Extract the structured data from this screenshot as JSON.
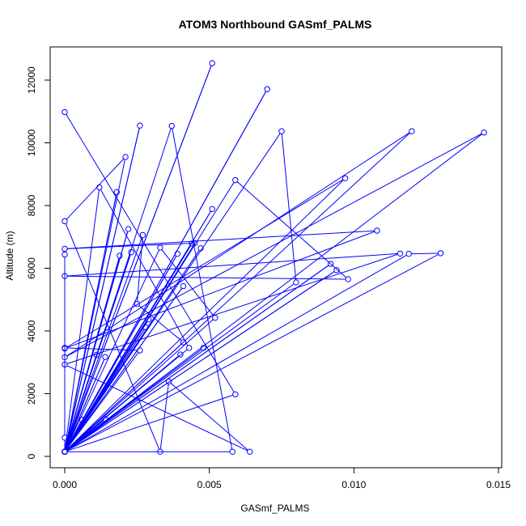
{
  "colors": {
    "series": "#0000ff",
    "axis": "#000000",
    "background": "#ffffff"
  },
  "chart_data": {
    "type": "line",
    "markers": "open-circle",
    "title": "ATOM3 Northbound GASmf_PALMS",
    "xlabel": "GASmf_PALMS",
    "ylabel": "Altitude (m)",
    "xlim": [
      0,
      0.015
    ],
    "ylim": [
      0,
      12500
    ],
    "x_ticks": [
      0,
      0.005,
      0.01,
      0.015
    ],
    "x_tick_labels": [
      "0.000",
      "0.005",
      "0.010",
      "0.015"
    ],
    "y_ticks": [
      0,
      2000,
      4000,
      6000,
      8000,
      10000,
      12000
    ],
    "y_tick_labels": [
      "0",
      "2000",
      "4000",
      "6000",
      "8000",
      "10000",
      "12000"
    ],
    "grid": false,
    "series": [
      {
        "points": [
          [
            0.0,
            10980
          ],
          [
            0.0059,
            1980
          ],
          [
            0.0,
            150
          ],
          [
            0.0051,
            12540
          ],
          [
            0.0,
            150
          ],
          [
            0.007,
            11710
          ],
          [
            0.0,
            150
          ],
          [
            0.0026,
            10550
          ],
          [
            0.0,
            150
          ],
          [
            0.0037,
            10540
          ],
          [
            0.0058,
            150
          ],
          [
            0.0,
            150
          ],
          [
            0.0075,
            10370
          ],
          [
            0.008,
            5550
          ],
          [
            0.0,
            150
          ],
          [
            0.012,
            10370
          ],
          [
            0.0,
            3160
          ],
          [
            0.0145,
            10330
          ],
          [
            0.0,
            150
          ],
          [
            0.013,
            6480
          ],
          [
            0.0119,
            6460
          ],
          [
            0.0,
            150
          ],
          [
            0.0097,
            8870
          ],
          [
            0.0,
            3440
          ],
          [
            0.0108,
            7200
          ],
          [
            0.0,
            6620
          ],
          [
            0.0045,
            6800
          ],
          [
            0.0,
            150
          ],
          [
            0.0059,
            8810
          ],
          [
            0.0098,
            5650
          ],
          [
            0.0,
            5750
          ],
          [
            0.0116,
            6470
          ],
          [
            0.0,
            2930
          ],
          [
            0.0064,
            150
          ],
          [
            0.0036,
            2390
          ],
          [
            0.0033,
            150
          ],
          [
            0.0,
            7500
          ],
          [
            0.0021,
            9550
          ],
          [
            0.0,
            150
          ],
          [
            0.0051,
            7890
          ],
          [
            0.0,
            150
          ],
          [
            0.0018,
            8430
          ],
          [
            0.0,
            150
          ],
          [
            0.0012,
            8580
          ],
          [
            0.0043,
            3460
          ],
          [
            0.0,
            150
          ],
          [
            0.0044,
            6790
          ],
          [
            0.0,
            150
          ],
          [
            0.0039,
            6460
          ],
          [
            0.0,
            150
          ],
          [
            0.0094,
            5940
          ],
          [
            0.0,
            150
          ],
          [
            0.0092,
            6140
          ],
          [
            0.0,
            150
          ],
          [
            0.0,
            600
          ],
          [
            0.0,
            6440
          ],
          [
            0.0,
            3460
          ],
          [
            0.0026,
            3380
          ],
          [
            0.0,
            150
          ],
          [
            0.0,
            150
          ],
          [
            0.0014,
            1190
          ],
          [
            0.0,
            150
          ],
          [
            0.0023,
            6510
          ],
          [
            0.0,
            150
          ],
          [
            0.0022,
            7250
          ],
          [
            0.0,
            150
          ],
          [
            0.0027,
            7060
          ],
          [
            0.0025,
            4860
          ],
          [
            0.0041,
            3640
          ],
          [
            0.0,
            150
          ],
          [
            0.0033,
            6660
          ],
          [
            0.0052,
            4420
          ],
          [
            0.0,
            150
          ],
          [
            0.0047,
            6640
          ],
          [
            0.0,
            150
          ],
          [
            0.0019,
            6400
          ],
          [
            0.0,
            150
          ],
          [
            0.0041,
            5430
          ],
          [
            0.0,
            150
          ],
          [
            0.0029,
            4370
          ],
          [
            0.0,
            150
          ],
          [
            0.0028,
            4120
          ],
          [
            0.0,
            150
          ],
          [
            0.0011,
            3240
          ],
          [
            0.0,
            150
          ],
          [
            0.0014,
            3170
          ],
          [
            0.0,
            150
          ],
          [
            0.0006,
            1170
          ],
          [
            0.0,
            150
          ],
          [
            0.004,
            3250
          ],
          [
            0.0,
            150
          ],
          [
            0.0048,
            3460
          ],
          [
            0.0,
            150
          ]
        ]
      }
    ]
  }
}
